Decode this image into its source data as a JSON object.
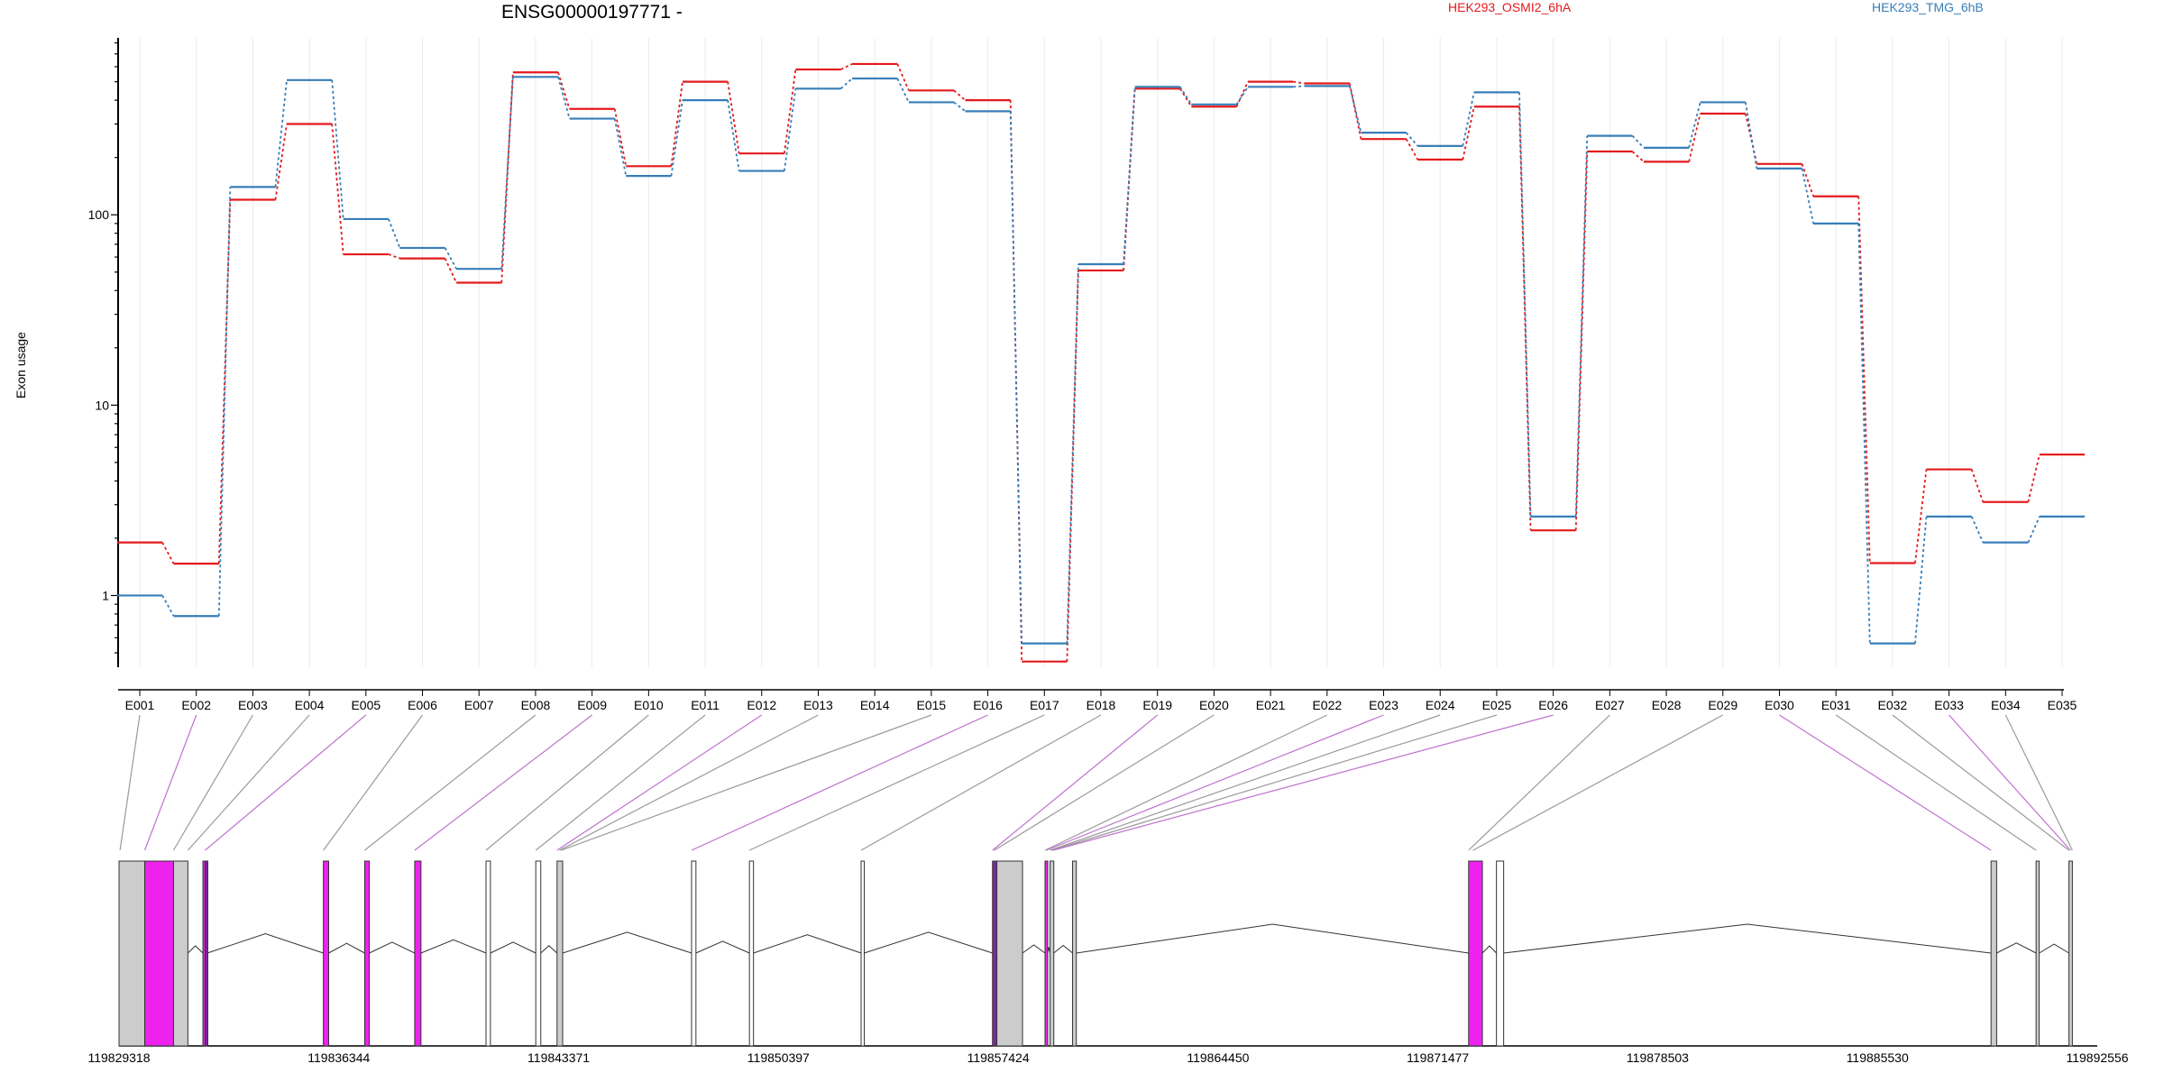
{
  "chart_data": {
    "type": "line",
    "title": "ENSG00000197771 -",
    "ylabel": "Exon usage",
    "xlabel": "",
    "y_scale": "log",
    "ylim": [
      0.42,
      850
    ],
    "y_ticks": [
      1,
      10,
      100
    ],
    "y_tick_labels": [
      "1",
      "10",
      "100"
    ],
    "categories": [
      "E001",
      "E002",
      "E003",
      "E004",
      "E005",
      "E006",
      "E007",
      "E008",
      "E009",
      "E010",
      "E011",
      "E012",
      "E013",
      "E014",
      "E015",
      "E016",
      "E017",
      "E018",
      "E019",
      "E020",
      "E021",
      "E022",
      "E023",
      "E024",
      "E025",
      "E026",
      "E027",
      "E028",
      "E029",
      "E030",
      "E031",
      "E032",
      "E033",
      "E034",
      "E035"
    ],
    "series": [
      {
        "name": "HEK293_OSMI2_6hA",
        "color": "#e41a1c",
        "values": [
          1.9,
          1.47,
          120,
          300,
          62,
          59,
          44,
          560,
          360,
          180,
          500,
          210,
          580,
          620,
          450,
          400,
          0.45,
          51,
          460,
          370,
          500,
          490,
          250,
          195,
          370,
          2.2,
          215,
          190,
          340,
          185,
          125,
          1.48,
          4.6,
          3.1,
          5.5
        ]
      },
      {
        "name": "HEK293_TMG_6hB",
        "color": "#377eb8",
        "values": [
          1.0,
          0.78,
          140,
          510,
          95,
          67,
          52,
          530,
          320,
          160,
          400,
          170,
          460,
          520,
          390,
          350,
          0.56,
          55,
          470,
          380,
          470,
          475,
          270,
          230,
          440,
          2.6,
          260,
          225,
          390,
          175,
          90,
          0.56,
          2.6,
          1.9,
          2.6
        ]
      }
    ],
    "grid": "vertical-light",
    "legend_position": "top-center",
    "gene_model": {
      "coordinate_labels": [
        "119829318",
        "119836344",
        "119843371",
        "119850397",
        "119857424",
        "119864450",
        "119871477",
        "119878503",
        "119885530",
        "119892556"
      ],
      "coord_range": [
        119829318,
        119892556
      ],
      "exons": [
        {
          "start": 119829318,
          "end": 119830140,
          "fill": "#cccccc"
        },
        {
          "start": 119830140,
          "end": 119831060,
          "fill": "#ee22ee"
        },
        {
          "start": 119831060,
          "end": 119831520,
          "fill": "#cccccc"
        },
        {
          "start": 119832000,
          "end": 119832070,
          "fill": "#ee22ee"
        },
        {
          "start": 119832070,
          "end": 119832140,
          "fill": "#7a2a9a"
        },
        {
          "start": 119835850,
          "end": 119836020,
          "fill": "#ee22ee"
        },
        {
          "start": 119837170,
          "end": 119837320,
          "fill": "#ee22ee"
        },
        {
          "start": 119838770,
          "end": 119838970,
          "fill": "#ee22ee"
        },
        {
          "start": 119841050,
          "end": 119841190,
          "fill": "#ffffff"
        },
        {
          "start": 119842640,
          "end": 119842800,
          "fill": "#ffffff"
        },
        {
          "start": 119843320,
          "end": 119843500,
          "fill": "#cccccc"
        },
        {
          "start": 119847620,
          "end": 119847760,
          "fill": "#ffffff"
        },
        {
          "start": 119849470,
          "end": 119849600,
          "fill": "#ffffff"
        },
        {
          "start": 119853040,
          "end": 119853140,
          "fill": "#ffffff"
        },
        {
          "start": 119857240,
          "end": 119857380,
          "fill": "#7a2a9a"
        },
        {
          "start": 119857380,
          "end": 119858200,
          "fill": "#cccccc"
        },
        {
          "start": 119858920,
          "end": 119859000,
          "fill": "#ee22ee"
        },
        {
          "start": 119859080,
          "end": 119859200,
          "fill": "#cccccc"
        },
        {
          "start": 119859800,
          "end": 119859920,
          "fill": "#cccccc"
        },
        {
          "start": 119872460,
          "end": 119872900,
          "fill": "#ee22ee"
        },
        {
          "start": 119873350,
          "end": 119873580,
          "fill": "#ffffff"
        },
        {
          "start": 119889160,
          "end": 119889340,
          "fill": "#cccccc"
        },
        {
          "start": 119890600,
          "end": 119890700,
          "fill": "#cccccc"
        },
        {
          "start": 119891650,
          "end": 119891760,
          "fill": "#cccccc"
        }
      ],
      "connector_targets": [
        119829350,
        119830140,
        119831060,
        119831520,
        119832070,
        119835850,
        119837170,
        119838770,
        119841050,
        119842640,
        119843320,
        119843400,
        119843450,
        119847620,
        119849470,
        119853040,
        119857240,
        119857300,
        119858920,
        119858960,
        119859080,
        119859130,
        119859180,
        119872460,
        119872600,
        119889160,
        119890600,
        119891650,
        119891700,
        119891760
      ]
    }
  }
}
